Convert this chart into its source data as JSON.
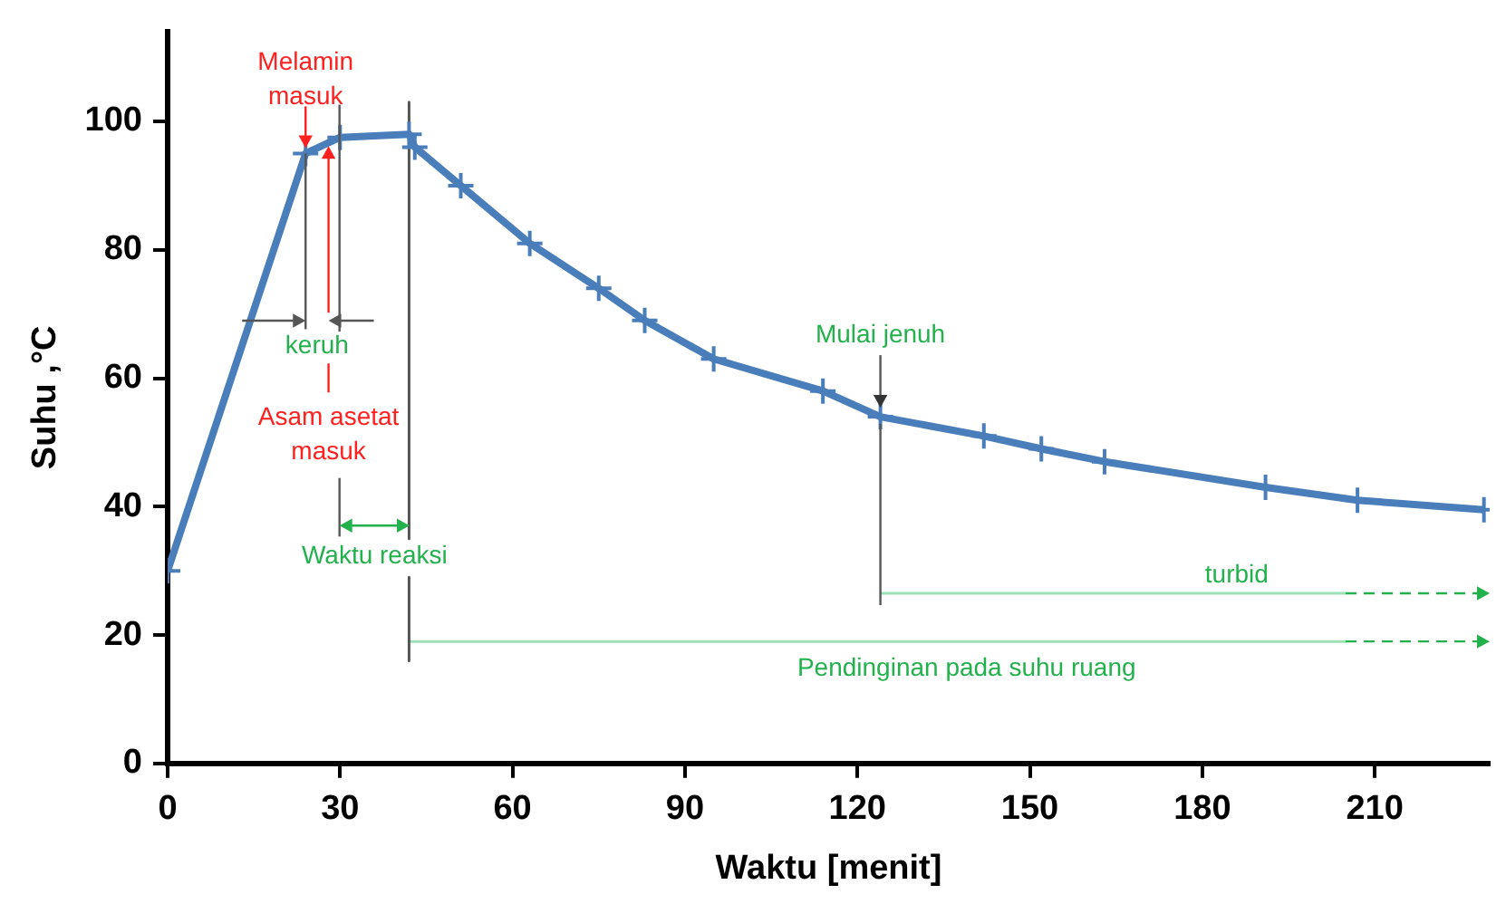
{
  "chart_data": {
    "type": "line",
    "xlabel": "Waktu [menit]",
    "ylabel": "Suhu ,°C",
    "x": [
      0,
      24,
      30,
      42,
      43,
      51,
      63,
      75,
      83,
      95,
      114,
      124,
      142,
      152,
      163,
      191,
      207,
      229
    ],
    "series": [
      {
        "color": "#4a7ebb",
        "values": [
          30,
          95,
          97.5,
          98,
          96,
          90,
          81,
          74,
          69,
          63,
          58,
          54,
          51,
          49,
          47,
          43,
          41,
          39.5
        ]
      },
      {
        "color": "#555555",
        "marker": "none",
        "x": [
          42,
          42
        ],
        "values": [
          103,
          35
        ]
      },
      {
        "color": "#555555",
        "marker": "none",
        "x": [
          42,
          42
        ],
        "values": [
          29,
          16
        ]
      },
      {
        "color": "#9ee0b5",
        "marker": "none",
        "x": [
          124,
          205
        ],
        "values": [
          26.5,
          26.5
        ]
      },
      {
        "color": "#9ee0b5",
        "marker": "none",
        "x": [
          42,
          205
        ],
        "values": [
          19,
          19
        ]
      }
    ],
    "xlim": [
      0,
      230
    ],
    "xticks": [
      0,
      30,
      60,
      90,
      120,
      150,
      180,
      210
    ],
    "ylim": [
      0,
      114
    ],
    "yticks": [
      0,
      20,
      40,
      60,
      80,
      100
    ],
    "grid": false,
    "legend": false,
    "marker": "cross",
    "line_style": "solid",
    "annotations": [
      {
        "text": "Melamin masuk",
        "x": 24,
        "y": 95
      },
      "Asam asetat masuk",
      {
        "text": "keruh",
        "x": 24,
        "y": 95
      },
      "Waktu reaksi",
      {
        "text": "Mulai jenuh",
        "x": 124,
        "y": 54
      },
      {
        "text": "turbid",
        "x": 186,
        "y": 26.5
      },
      {
        "text": "Pendinginan pada suhu ruang",
        "x": 139,
        "y": 19
      }
    ]
  }
}
